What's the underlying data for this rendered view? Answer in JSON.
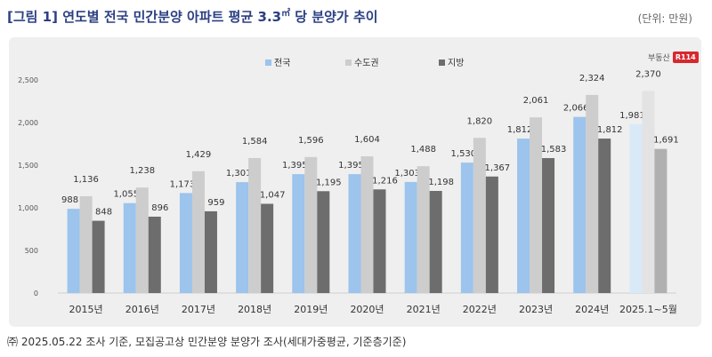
{
  "title": "[그림 1] 연도별 전국 민간분양 아파트 평균 3.3",
  "title_sup": "㎡",
  "title_suffix": " 당 분양가 추이",
  "unit": "(단위: 만원)",
  "note": "㈜ 2025.05.22 조사 기준, 모집공고상 민간분양 분양가 조사(세대가중평균, 기준층기준)",
  "logo": {
    "text": "부동산",
    "mark": "R114"
  },
  "colors": {
    "national": "#9cc4ec",
    "capital": "#cdcdcd",
    "local": "#6d6d6d",
    "national_last": "#d9e9f7",
    "capital_last": "#e3e3e3",
    "local_last": "#b0b0b0"
  },
  "chart_data": {
    "type": "bar",
    "categories": [
      "2015년",
      "2016년",
      "2017년",
      "2018년",
      "2019년",
      "2020년",
      "2021년",
      "2022년",
      "2023년",
      "2024년",
      "2025.1~5월"
    ],
    "series": [
      {
        "name": "전국",
        "values": [
          988,
          1055,
          1173,
          1301,
          1395,
          1395,
          1303,
          1530,
          1812,
          2066,
          1981
        ]
      },
      {
        "name": "수도권",
        "values": [
          1136,
          1238,
          1429,
          1584,
          1596,
          1604,
          1488,
          1820,
          2061,
          2324,
          2370
        ]
      },
      {
        "name": "지방",
        "values": [
          848,
          896,
          959,
          1047,
          1195,
          1216,
          1198,
          1367,
          1583,
          1812,
          1691
        ]
      }
    ],
    "yticks": [
      "0",
      "500",
      "1,000",
      "1,500",
      "2,000",
      "2,500"
    ],
    "ylim": [
      0,
      2500
    ],
    "legend_position": "top-center",
    "grid": false
  }
}
